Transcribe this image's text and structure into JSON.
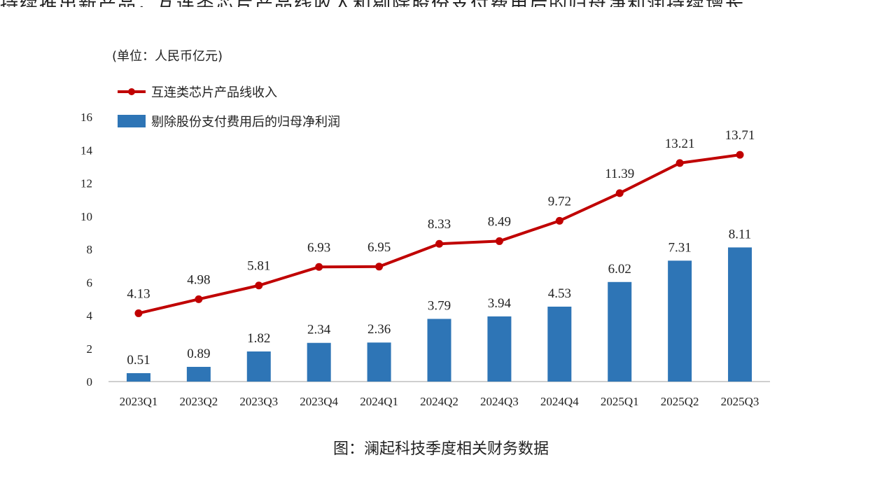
{
  "top_cut_text": "持续推出新产品，互连类芯片产品线收入和剔除股份支付费用后的归母净利润持续增长",
  "unit_label": "(单位：人民币亿元)",
  "caption": "图：澜起科技季度相关财务数据",
  "colors": {
    "line": "#c00000",
    "bar": "#2e75b6",
    "axis": "#bfbfbf",
    "text": "#222222"
  },
  "chart_data": {
    "type": "bar",
    "title": "",
    "xlabel": "",
    "ylabel": "",
    "ylim": [
      0,
      16
    ],
    "yticks": [
      0,
      2,
      4,
      6,
      8,
      10,
      12,
      14,
      16
    ],
    "grid": false,
    "legend_position": "top-left",
    "categories": [
      "2023Q1",
      "2023Q2",
      "2023Q3",
      "2023Q4",
      "2024Q1",
      "2024Q2",
      "2024Q3",
      "2024Q4",
      "2025Q1",
      "2025Q2",
      "2025Q3"
    ],
    "series": [
      {
        "name": "互连类芯片产品线收入",
        "type": "line",
        "values": [
          4.13,
          4.98,
          5.81,
          6.93,
          6.95,
          8.33,
          8.49,
          9.72,
          11.39,
          13.21,
          13.71
        ],
        "labels": [
          "4.13",
          "4.98",
          "5.81",
          "6.93",
          "6.95",
          "8.33",
          "8.49",
          "9.72",
          "11.39",
          "13.21",
          "13.71"
        ]
      },
      {
        "name": "剔除股份支付费用后的归母净利润",
        "type": "bar",
        "values": [
          0.51,
          0.89,
          1.82,
          2.34,
          2.36,
          3.79,
          3.94,
          4.53,
          6.02,
          7.31,
          8.11
        ],
        "labels": [
          "0.51",
          "0.89",
          "1.82",
          "2.34",
          "2.36",
          "3.79",
          "3.94",
          "4.53",
          "6.02",
          "7.31",
          "8.11"
        ]
      }
    ]
  }
}
